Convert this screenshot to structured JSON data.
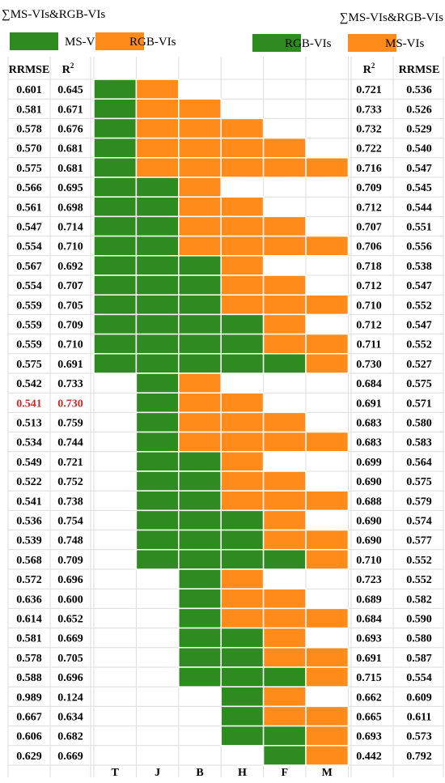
{
  "colors": {
    "ms": "#2e8b1f",
    "rgb": "#ff8c1a",
    "highlight": "#cc2a2a",
    "grid": "#dddddd"
  },
  "left_header": {
    "title": "∑MS-VIs&RGB-VIs",
    "legend": [
      {
        "label": "MS-VIs",
        "color": "#2e8b1f"
      },
      {
        "label": "RGB-VIs",
        "color": "#ff8c1a"
      }
    ]
  },
  "right_header": {
    "title": "∑MS-VIs&RGB-VIs",
    "legend": [
      {
        "label": "RGB-VIs",
        "color": "#2e8b1f"
      },
      {
        "label": "MS-VIs",
        "color": "#ff8c1a"
      }
    ]
  },
  "chart_data": {
    "type": "table",
    "columns": [
      "T",
      "J",
      "B",
      "H",
      "F",
      "M"
    ],
    "left_headers": [
      "RRMSE",
      "R2"
    ],
    "right_headers": [
      "R2",
      "RRMSE"
    ],
    "highlight_row": 16,
    "rows": [
      {
        "rrmse_l": "0.601",
        "r2_l": "0.645",
        "r2_r": "0.721",
        "rrmse_r": "0.536",
        "cells": "GO...."
      },
      {
        "rrmse_l": "0.581",
        "r2_l": "0.671",
        "r2_r": "0.733",
        "rrmse_r": "0.526",
        "cells": "GOO..."
      },
      {
        "rrmse_l": "0.578",
        "r2_l": "0.676",
        "r2_r": "0.732",
        "rrmse_r": "0.529",
        "cells": "GOOO.."
      },
      {
        "rrmse_l": "0.570",
        "r2_l": "0.681",
        "r2_r": "0.722",
        "rrmse_r": "0.540",
        "cells": "GOOOO."
      },
      {
        "rrmse_l": "0.575",
        "r2_l": "0.681",
        "r2_r": "0.716",
        "rrmse_r": "0.547",
        "cells": "GOOOOO"
      },
      {
        "rrmse_l": "0.566",
        "r2_l": "0.695",
        "r2_r": "0.709",
        "rrmse_r": "0.545",
        "cells": "GGO..."
      },
      {
        "rrmse_l": "0.561",
        "r2_l": "0.698",
        "r2_r": "0.712",
        "rrmse_r": "0.544",
        "cells": "GGOO.."
      },
      {
        "rrmse_l": "0.547",
        "r2_l": "0.714",
        "r2_r": "0.707",
        "rrmse_r": "0.551",
        "cells": "GGOOO."
      },
      {
        "rrmse_l": "0.554",
        "r2_l": "0.710",
        "r2_r": "0.706",
        "rrmse_r": "0.556",
        "cells": "GGOOOO"
      },
      {
        "rrmse_l": "0.567",
        "r2_l": "0.692",
        "r2_r": "0.718",
        "rrmse_r": "0.538",
        "cells": "GGGO.."
      },
      {
        "rrmse_l": "0.554",
        "r2_l": "0.707",
        "r2_r": "0.712",
        "rrmse_r": "0.547",
        "cells": "GGGOO."
      },
      {
        "rrmse_l": "0.559",
        "r2_l": "0.705",
        "r2_r": "0.710",
        "rrmse_r": "0.552",
        "cells": "GGGOOO"
      },
      {
        "rrmse_l": "0.559",
        "r2_l": "0.709",
        "r2_r": "0.712",
        "rrmse_r": "0.547",
        "cells": "GGGGO."
      },
      {
        "rrmse_l": "0.559",
        "r2_l": "0.710",
        "r2_r": "0.711",
        "rrmse_r": "0.552",
        "cells": "GGGGOO"
      },
      {
        "rrmse_l": "0.575",
        "r2_l": "0.691",
        "r2_r": "0.730",
        "rrmse_r": "0.527",
        "cells": "GGGGGO"
      },
      {
        "rrmse_l": "0.542",
        "r2_l": "0.733",
        "r2_r": "0.684",
        "rrmse_r": "0.575",
        "cells": ".GO..."
      },
      {
        "rrmse_l": "0.541",
        "r2_l": "0.730",
        "r2_r": "0.691",
        "rrmse_r": "0.571",
        "cells": ".GOO.."
      },
      {
        "rrmse_l": "0.513",
        "r2_l": "0.759",
        "r2_r": "0.683",
        "rrmse_r": "0.580",
        "cells": ".GOOO."
      },
      {
        "rrmse_l": "0.534",
        "r2_l": "0.744",
        "r2_r": "0.683",
        "rrmse_r": "0.583",
        "cells": ".GOOOO"
      },
      {
        "rrmse_l": "0.549",
        "r2_l": "0.721",
        "r2_r": "0.699",
        "rrmse_r": "0.564",
        "cells": ".GGO.."
      },
      {
        "rrmse_l": "0.522",
        "r2_l": "0.752",
        "r2_r": "0.690",
        "rrmse_r": "0.575",
        "cells": ".GGOO."
      },
      {
        "rrmse_l": "0.541",
        "r2_l": "0.738",
        "r2_r": "0.688",
        "rrmse_r": "0.579",
        "cells": ".GGOOO"
      },
      {
        "rrmse_l": "0.536",
        "r2_l": "0.754",
        "r2_r": "0.690",
        "rrmse_r": "0.574",
        "cells": ".GGGO."
      },
      {
        "rrmse_l": "0.539",
        "r2_l": "0.748",
        "r2_r": "0.690",
        "rrmse_r": "0.577",
        "cells": ".GGGOO"
      },
      {
        "rrmse_l": "0.568",
        "r2_l": "0.709",
        "r2_r": "0.710",
        "rrmse_r": "0.552",
        "cells": ".GGGGO"
      },
      {
        "rrmse_l": "0.572",
        "r2_l": "0.696",
        "r2_r": "0.723",
        "rrmse_r": "0.552",
        "cells": "..GO.."
      },
      {
        "rrmse_l": "0.636",
        "r2_l": "0.600",
        "r2_r": "0.689",
        "rrmse_r": "0.582",
        "cells": "..GOO."
      },
      {
        "rrmse_l": "0.614",
        "r2_l": "0.652",
        "r2_r": "0.684",
        "rrmse_r": "0.590",
        "cells": "..GOOO"
      },
      {
        "rrmse_l": "0.581",
        "r2_l": "0.669",
        "r2_r": "0.693",
        "rrmse_r": "0.580",
        "cells": "..GGO."
      },
      {
        "rrmse_l": "0.578",
        "r2_l": "0.705",
        "r2_r": "0.691",
        "rrmse_r": "0.587",
        "cells": "..GGOO"
      },
      {
        "rrmse_l": "0.588",
        "r2_l": "0.696",
        "r2_r": "0.715",
        "rrmse_r": "0.554",
        "cells": "..GGGO"
      },
      {
        "rrmse_l": "0.989",
        "r2_l": "0.124",
        "r2_r": "0.662",
        "rrmse_r": "0.609",
        "cells": "...GO."
      },
      {
        "rrmse_l": "0.667",
        "r2_l": "0.634",
        "r2_r": "0.665",
        "rrmse_r": "0.611",
        "cells": "...GOO"
      },
      {
        "rrmse_l": "0.606",
        "r2_l": "0.682",
        "r2_r": "0.693",
        "rrmse_r": "0.573",
        "cells": "...GGO"
      },
      {
        "rrmse_l": "0.629",
        "r2_l": "0.669",
        "r2_r": "0.442",
        "rrmse_r": "0.792",
        "cells": "....GO"
      }
    ]
  }
}
